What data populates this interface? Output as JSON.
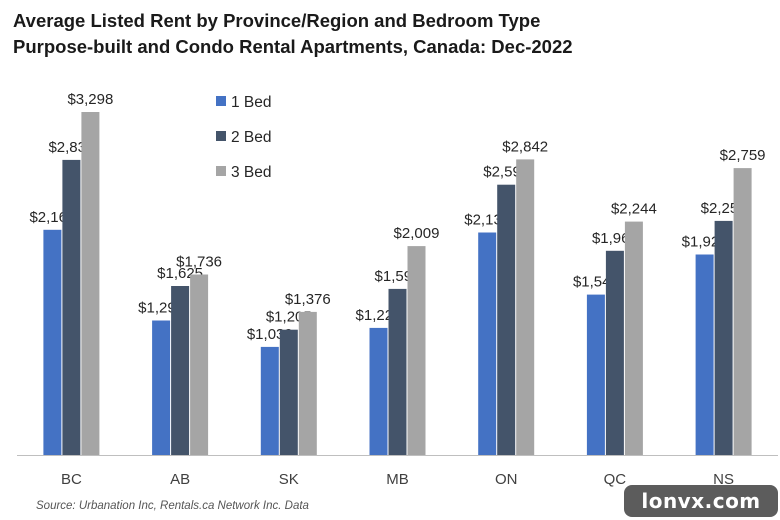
{
  "chart_data": {
    "type": "bar",
    "title": "Average Listed Rent by Province/Region and Bedroom Type",
    "subtitle": "Purpose-built and Condo Rental Apartments, Canada: Dec-2022",
    "categories": [
      "BC",
      "AB",
      "SK",
      "MB",
      "ON",
      "QC",
      "NS"
    ],
    "series": [
      {
        "name": "1 Bed",
        "color": "#4472c4",
        "values": [
          2165,
          1293,
          1039,
          1222,
          2139,
          1542,
          1928
        ],
        "labels": [
          "$2,165",
          "$1,293",
          "$1,039",
          "$1,222",
          "$2,139",
          "$1,542",
          "$1,928"
        ]
      },
      {
        "name": "2 Bed",
        "color": "#44546a",
        "values": [
          2837,
          1625,
          1205,
          1597,
          2599,
          1963,
          2251
        ],
        "labels": [
          "$2,837",
          "$1,625",
          "$1,205",
          "$1,597",
          "$2,599",
          "$1,963",
          "$2,251"
        ]
      },
      {
        "name": "3 Bed",
        "color": "#a5a5a5",
        "values": [
          3298,
          1736,
          1376,
          2009,
          2842,
          2244,
          2759
        ],
        "labels": [
          "$3,298",
          "$1,736",
          "$1,376",
          "$2,009",
          "$2,842",
          "$2,244",
          "$2,759"
        ]
      }
    ],
    "ylim": [
      0,
      3600
    ],
    "grid": false,
    "legend": "top-left"
  },
  "source": "Source: Urbanation Inc, Rentals.ca Network Inc. Data",
  "watermark": "lonvx.com"
}
